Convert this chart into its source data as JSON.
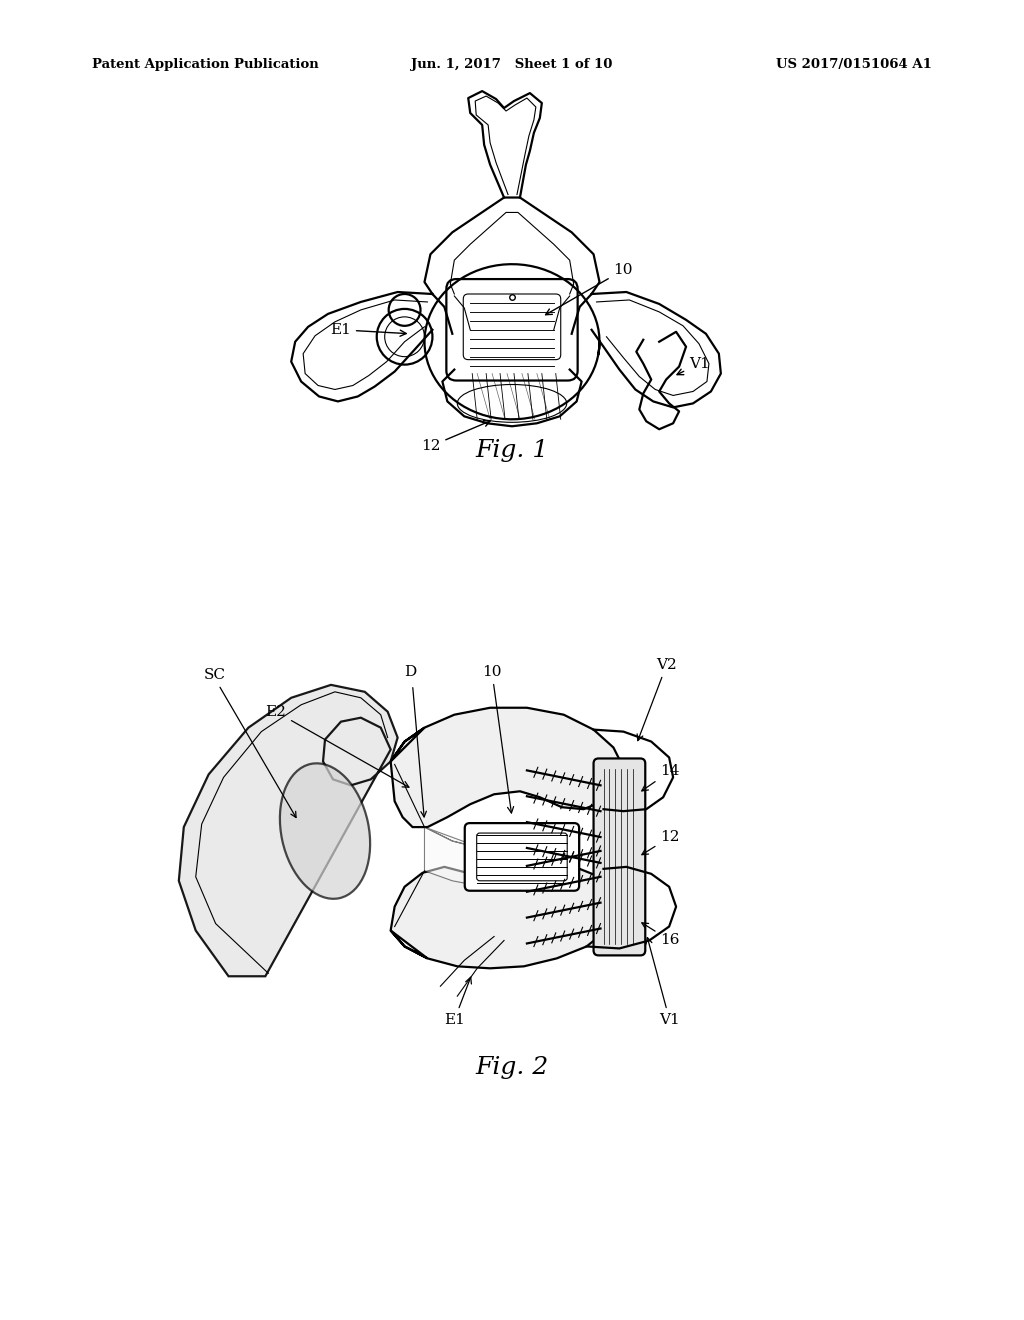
{
  "background_color": "#ffffff",
  "header_left": "Patent Application Publication",
  "header_mid": "Jun. 1, 2017   Sheet 1 of 10",
  "header_right": "US 2017/0151064 A1",
  "fig1_caption": "Fig. 1",
  "fig2_caption": "Fig. 2",
  "text_color": "#000000",
  "line_color": "#000000",
  "lw_main": 1.6,
  "lw_thin": 0.8
}
